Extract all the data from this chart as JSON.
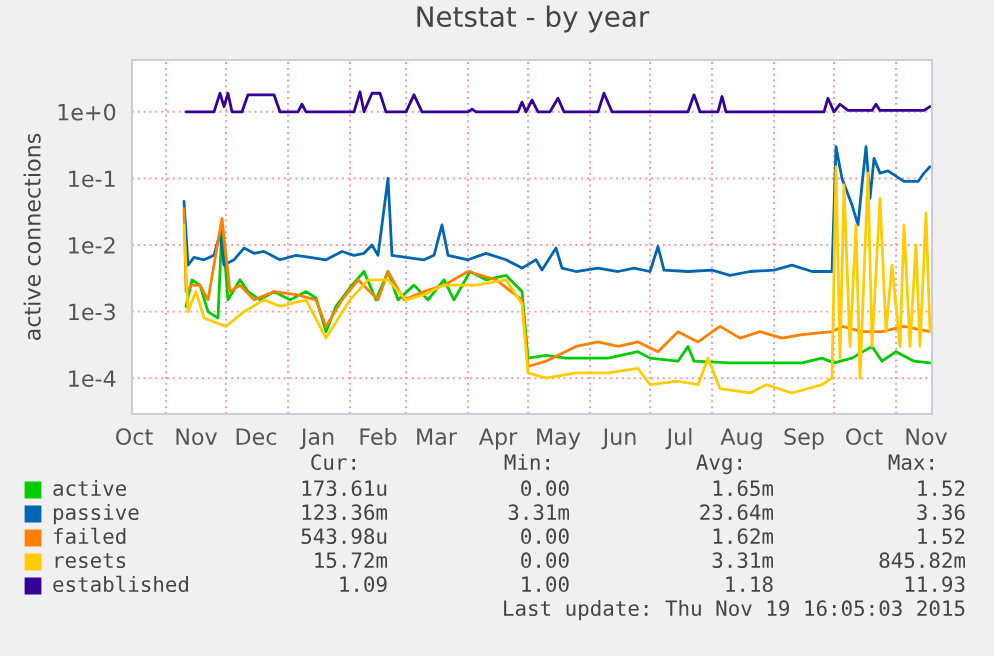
{
  "chart_data": {
    "type": "line",
    "title": "Netstat - by year",
    "ylabel": "active connections",
    "log": true,
    "grid": true,
    "legend": "bottom",
    "xlim": [
      "2014-10-15",
      "2015-11-19"
    ],
    "xticks": [
      {
        "value": "2014-10-16",
        "label": "Oct"
      },
      {
        "value": "2014-11-01",
        "label": null
      },
      {
        "value": "2014-11-16",
        "label": "Nov"
      },
      {
        "value": "2014-12-01",
        "label": null
      },
      {
        "value": "2014-12-16",
        "label": "Dec"
      },
      {
        "value": "2015-01-01",
        "label": null
      },
      {
        "value": "2015-01-16",
        "label": "Jan"
      },
      {
        "value": "2015-02-01",
        "label": null
      },
      {
        "value": "2015-02-15",
        "label": "Feb"
      },
      {
        "value": "2015-03-01",
        "label": null
      },
      {
        "value": "2015-03-16",
        "label": "Mar"
      },
      {
        "value": "2015-04-01",
        "label": null
      },
      {
        "value": "2015-04-16",
        "label": "Apr"
      },
      {
        "value": "2015-05-01",
        "label": null
      },
      {
        "value": "2015-05-16",
        "label": "May"
      },
      {
        "value": "2015-06-01",
        "label": null
      },
      {
        "value": "2015-06-16",
        "label": "Jun"
      },
      {
        "value": "2015-07-01",
        "label": null
      },
      {
        "value": "2015-07-16",
        "label": "Jul"
      },
      {
        "value": "2015-08-01",
        "label": null
      },
      {
        "value": "2015-08-16",
        "label": "Aug"
      },
      {
        "value": "2015-09-01",
        "label": null
      },
      {
        "value": "2015-09-16",
        "label": "Sep"
      },
      {
        "value": "2015-10-01",
        "label": null
      },
      {
        "value": "2015-10-16",
        "label": "Oct"
      },
      {
        "value": "2015-11-01",
        "label": null
      },
      {
        "value": "2015-11-16",
        "label": "Nov"
      }
    ],
    "ylim": [
      2.9e-05,
      6
    ],
    "yticks": [
      {
        "value": 0.0001,
        "label": "1e-4"
      },
      {
        "value": 0.001,
        "label": "1e-3"
      },
      {
        "value": 0.01,
        "label": "1e-2"
      },
      {
        "value": 0.1,
        "label": "1e-1"
      },
      {
        "value": 1,
        "label": "1e+0"
      }
    ],
    "series": [
      {
        "name": "active",
        "color": "#00cc00",
        "x": [
          "2014-11-11",
          "2014-11-14",
          "2014-11-18",
          "2014-11-22",
          "2014-11-27",
          "2014-11-29",
          "2014-12-02",
          "2014-12-08",
          "2014-12-12",
          "2014-12-18",
          "2014-12-25",
          "2015-01-02",
          "2015-01-10",
          "2015-01-15",
          "2015-01-20",
          "2015-01-25",
          "2015-02-02",
          "2015-02-08",
          "2015-02-14",
          "2015-02-20",
          "2015-02-25",
          "2015-03-05",
          "2015-03-12",
          "2015-03-20",
          "2015-03-25",
          "2015-04-02",
          "2015-04-10",
          "2015-04-20",
          "2015-04-28",
          "2015-05-01",
          "2015-05-10",
          "2015-05-20",
          "2015-06-10",
          "2015-06-25",
          "2015-07-01",
          "2015-07-15",
          "2015-07-20",
          "2015-07-23",
          "2015-08-10",
          "2015-08-25",
          "2015-09-15",
          "2015-09-25",
          "2015-10-01",
          "2015-10-10",
          "2015-10-20",
          "2015-10-25",
          "2015-11-01",
          "2015-11-10",
          "2015-11-18"
        ],
        "values": [
          0.0012,
          0.003,
          0.0025,
          0.001,
          0.0008,
          0.02,
          0.0015,
          0.003,
          0.002,
          0.0015,
          0.002,
          0.0015,
          0.002,
          0.0016,
          0.0005,
          0.0012,
          0.0025,
          0.004,
          0.0015,
          0.004,
          0.0015,
          0.0025,
          0.0015,
          0.003,
          0.0015,
          0.004,
          0.003,
          0.0035,
          0.002,
          0.0002,
          0.00022,
          0.0002,
          0.0002,
          0.00025,
          0.0002,
          0.00018,
          0.0003,
          0.00018,
          0.00017,
          0.00017,
          0.00017,
          0.0002,
          0.00017,
          0.0002,
          0.0003,
          0.00018,
          0.00025,
          0.00018,
          0.00017
        ]
      },
      {
        "name": "passive",
        "color": "#0066b3",
        "x": [
          "2014-11-10",
          "2014-11-12",
          "2014-11-15",
          "2014-11-20",
          "2014-11-25",
          "2014-11-28",
          "2014-11-30",
          "2014-12-05",
          "2014-12-10",
          "2014-12-15",
          "2014-12-20",
          "2014-12-28",
          "2015-01-05",
          "2015-01-12",
          "2015-01-20",
          "2015-01-28",
          "2015-02-03",
          "2015-02-08",
          "2015-02-12",
          "2015-02-15",
          "2015-02-20",
          "2015-02-22",
          "2015-03-01",
          "2015-03-10",
          "2015-03-15",
          "2015-03-19",
          "2015-03-22",
          "2015-04-01",
          "2015-04-10",
          "2015-04-20",
          "2015-04-28",
          "2015-05-05",
          "2015-05-08",
          "2015-05-15",
          "2015-05-18",
          "2015-05-25",
          "2015-06-05",
          "2015-06-15",
          "2015-06-23",
          "2015-07-01",
          "2015-07-05",
          "2015-07-08",
          "2015-07-20",
          "2015-08-01",
          "2015-08-10",
          "2015-08-20",
          "2015-09-01",
          "2015-09-10",
          "2015-09-20",
          "2015-09-30",
          "2015-10-02",
          "2015-10-05",
          "2015-10-10",
          "2015-10-13",
          "2015-10-15",
          "2015-10-17",
          "2015-10-19",
          "2015-10-21",
          "2015-10-24",
          "2015-10-28",
          "2015-11-05",
          "2015-11-12",
          "2015-11-15",
          "2015-11-18"
        ],
        "values": [
          0.045,
          0.005,
          0.0065,
          0.006,
          0.007,
          0.015,
          0.005,
          0.006,
          0.009,
          0.0075,
          0.008,
          0.006,
          0.007,
          0.0065,
          0.006,
          0.008,
          0.007,
          0.0075,
          0.01,
          0.007,
          0.1,
          0.007,
          0.0065,
          0.006,
          0.007,
          0.02,
          0.007,
          0.006,
          0.0075,
          0.006,
          0.0045,
          0.006,
          0.0042,
          0.009,
          0.0045,
          0.004,
          0.0045,
          0.004,
          0.0045,
          0.004,
          0.0095,
          0.0042,
          0.004,
          0.0042,
          0.0035,
          0.004,
          0.0042,
          0.005,
          0.004,
          0.004,
          0.3,
          0.1,
          0.04,
          0.02,
          0.08,
          0.3,
          0.05,
          0.2,
          0.12,
          0.13,
          0.09,
          0.09,
          0.12,
          0.15
        ]
      },
      {
        "name": "failed",
        "color": "#ff8000",
        "x": [
          "2014-11-10",
          "2014-11-11",
          "2014-11-14",
          "2014-11-18",
          "2014-11-22",
          "2014-11-29",
          "2014-12-03",
          "2014-12-08",
          "2014-12-15",
          "2014-12-25",
          "2015-01-05",
          "2015-01-15",
          "2015-01-20",
          "2015-01-28",
          "2015-02-05",
          "2015-02-15",
          "2015-02-20",
          "2015-02-28",
          "2015-03-10",
          "2015-03-20",
          "2015-04-01",
          "2015-04-15",
          "2015-04-28",
          "2015-05-01",
          "2015-05-10",
          "2015-05-25",
          "2015-06-05",
          "2015-06-15",
          "2015-06-25",
          "2015-07-05",
          "2015-07-15",
          "2015-07-25",
          "2015-08-05",
          "2015-08-15",
          "2015-08-25",
          "2015-09-05",
          "2015-09-15",
          "2015-09-30",
          "2015-10-05",
          "2015-10-15",
          "2015-10-25",
          "2015-11-05",
          "2015-11-18"
        ],
        "values": [
          0.035,
          0.002,
          0.0025,
          0.0025,
          0.0015,
          0.025,
          0.002,
          0.0025,
          0.0015,
          0.002,
          0.0018,
          0.0015,
          0.0006,
          0.0015,
          0.003,
          0.0015,
          0.004,
          0.0015,
          0.002,
          0.0025,
          0.004,
          0.003,
          0.0015,
          0.00015,
          0.00018,
          0.0003,
          0.00035,
          0.0003,
          0.00035,
          0.00025,
          0.0005,
          0.00035,
          0.0006,
          0.0004,
          0.0005,
          0.0004,
          0.00045,
          0.0005,
          0.0006,
          0.0005,
          0.0005,
          0.0006,
          0.0005
        ]
      },
      {
        "name": "resets",
        "color": "#ffcc00",
        "x": [
          "2014-11-10",
          "2014-11-12",
          "2014-11-16",
          "2014-11-20",
          "2014-11-25",
          "2014-12-01",
          "2014-12-10",
          "2014-12-20",
          "2014-12-28",
          "2015-01-10",
          "2015-01-20",
          "2015-02-01",
          "2015-02-10",
          "2015-02-20",
          "2015-03-01",
          "2015-03-10",
          "2015-03-20",
          "2015-04-05",
          "2015-04-20",
          "2015-04-28",
          "2015-05-01",
          "2015-05-10",
          "2015-05-25",
          "2015-06-10",
          "2015-06-25",
          "2015-07-01",
          "2015-07-15",
          "2015-07-25",
          "2015-07-30",
          "2015-08-05",
          "2015-08-20",
          "2015-08-28",
          "2015-09-10",
          "2015-09-25",
          "2015-09-30",
          "2015-10-02",
          "2015-10-04",
          "2015-10-06",
          "2015-10-09",
          "2015-10-12",
          "2015-10-14",
          "2015-10-18",
          "2015-10-20",
          "2015-10-24",
          "2015-10-27",
          "2015-10-30",
          "2015-11-03",
          "2015-11-05",
          "2015-11-08",
          "2015-11-11",
          "2015-11-13",
          "2015-11-16",
          "2015-11-18"
        ],
        "values": [
          0.02,
          0.001,
          0.002,
          0.0008,
          0.0007,
          0.0006,
          0.001,
          0.0015,
          0.0012,
          0.0015,
          0.0004,
          0.0015,
          0.003,
          0.003,
          0.0015,
          0.0018,
          0.0025,
          0.0025,
          0.003,
          0.0013,
          0.00012,
          0.0001,
          0.00012,
          0.00012,
          0.00014,
          8e-05,
          9e-05,
          8e-05,
          0.0002,
          7e-05,
          6e-05,
          8e-05,
          6e-05,
          8e-05,
          0.0001,
          0.15,
          0.0002,
          0.08,
          0.0003,
          0.02,
          0.0001,
          0.12,
          0.0003,
          0.05,
          0.0005,
          0.005,
          0.0003,
          0.02,
          0.0003,
          0.01,
          0.0003,
          0.03,
          0.0005
        ]
      },
      {
        "name": "established",
        "color": "#330099",
        "x": [
          "2014-11-11",
          "2014-11-25",
          "2014-11-28",
          "2014-11-30",
          "2014-12-02",
          "2014-12-04",
          "2014-12-09",
          "2014-12-12",
          "2014-12-25",
          "2014-12-28",
          "2015-01-06",
          "2015-01-08",
          "2015-01-10",
          "2015-02-03",
          "2015-02-06",
          "2015-02-08",
          "2015-02-12",
          "2015-02-16",
          "2015-02-19",
          "2015-03-01",
          "2015-03-05",
          "2015-03-09",
          "2015-04-01",
          "2015-04-03",
          "2015-04-05",
          "2015-04-26",
          "2015-04-28",
          "2015-04-30",
          "2015-05-03",
          "2015-05-06",
          "2015-05-12",
          "2015-05-16",
          "2015-05-19",
          "2015-06-05",
          "2015-06-08",
          "2015-06-12",
          "2015-07-20",
          "2015-07-23",
          "2015-07-26",
          "2015-08-04",
          "2015-08-06",
          "2015-08-08",
          "2015-09-26",
          "2015-09-28",
          "2015-10-01",
          "2015-10-04",
          "2015-10-08",
          "2015-10-20",
          "2015-10-22",
          "2015-10-24",
          "2015-11-15",
          "2015-11-18"
        ],
        "values": [
          1.0,
          1.0,
          1.9,
          1.2,
          1.9,
          1.0,
          1.0,
          1.8,
          1.8,
          1.0,
          1.0,
          1.3,
          1.0,
          1.0,
          2.0,
          1.0,
          1.9,
          1.9,
          1.0,
          1.0,
          1.8,
          1.0,
          1.0,
          1.1,
          1.0,
          1.0,
          1.4,
          1.0,
          1.5,
          1.0,
          1.0,
          1.6,
          1.0,
          1.0,
          1.9,
          1.0,
          1.0,
          1.8,
          1.0,
          1.0,
          1.7,
          1.0,
          1.0,
          1.6,
          1.0,
          1.3,
          1.05,
          1.05,
          1.3,
          1.05,
          1.05,
          1.2
        ]
      }
    ],
    "annotations": [
      "Cur:",
      "Min:",
      "Avg:",
      "Max:",
      "173.61u",
      "0.00",
      "1.65m",
      "1.52",
      "123.36m",
      "3.31m",
      "23.64m",
      "3.36",
      "543.98u",
      "0.00",
      "1.62m",
      "1.52",
      "15.72m",
      "0.00",
      "3.31m",
      "845.82m",
      "1.09",
      "1.00",
      "1.18",
      "11.93",
      "Last update: Thu Nov 19 16:05:03 2015"
    ]
  }
}
